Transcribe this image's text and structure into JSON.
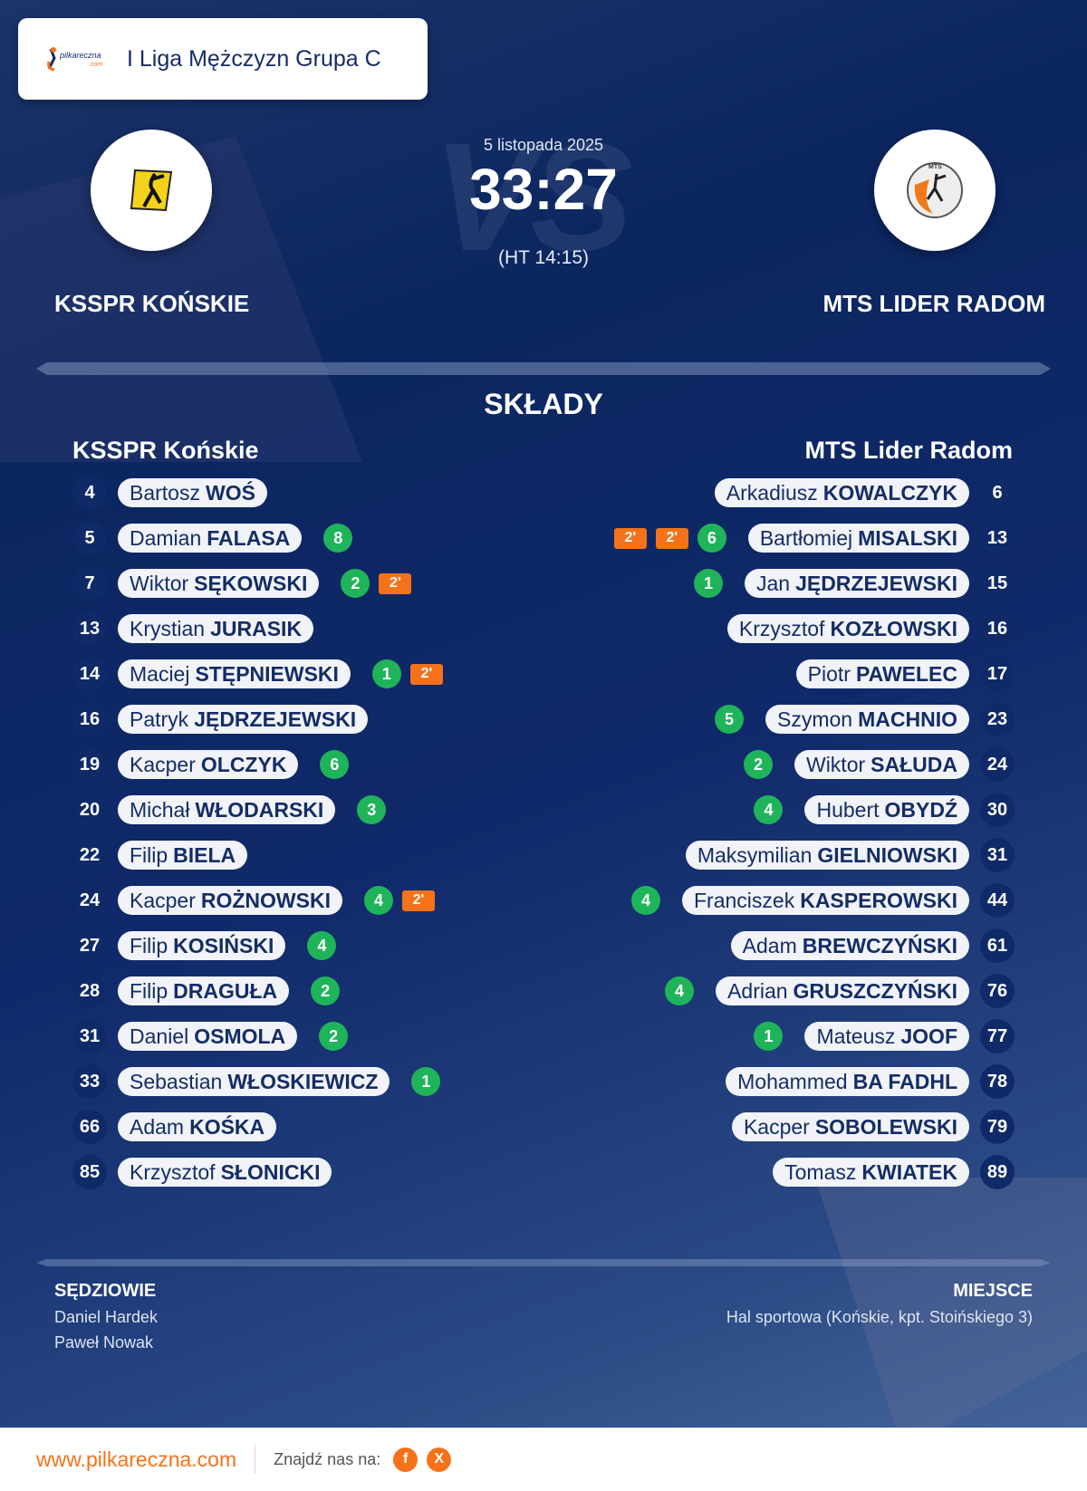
{
  "league": {
    "title": "I Liga Mężczyzn Grupa C",
    "logo_text": "pilkareczna .com"
  },
  "match": {
    "date": "5 listopada 2025",
    "score": "33:27",
    "halftime": "(HT 14:15)",
    "vs": "VS"
  },
  "home": {
    "name": "KSSPR KOŃSKIE",
    "squad_title": "KSSPR Końskie",
    "players": [
      {
        "num": "4",
        "first": "Bartosz",
        "last": "WOŚ",
        "goals": null,
        "pens": []
      },
      {
        "num": "5",
        "first": "Damian",
        "last": "FALASA",
        "goals": "8",
        "pens": []
      },
      {
        "num": "7",
        "first": "Wiktor",
        "last": "SĘKOWSKI",
        "goals": "2",
        "pens": [
          "2'"
        ]
      },
      {
        "num": "13",
        "first": "Krystian",
        "last": "JURASIK",
        "goals": null,
        "pens": []
      },
      {
        "num": "14",
        "first": "Maciej",
        "last": "STĘPNIEWSKI",
        "goals": "1",
        "pens": [
          "2'"
        ]
      },
      {
        "num": "16",
        "first": "Patryk",
        "last": "JĘDRZEJEWSKI",
        "goals": null,
        "pens": []
      },
      {
        "num": "19",
        "first": "Kacper",
        "last": "OLCZYK",
        "goals": "6",
        "pens": []
      },
      {
        "num": "20",
        "first": "Michał",
        "last": "WŁODARSKI",
        "goals": "3",
        "pens": []
      },
      {
        "num": "22",
        "first": "Filip",
        "last": "BIELA",
        "goals": null,
        "pens": []
      },
      {
        "num": "24",
        "first": "Kacper",
        "last": "ROŻNOWSKI",
        "goals": "4",
        "pens": [
          "2'"
        ]
      },
      {
        "num": "27",
        "first": "Filip",
        "last": "KOSIŃSKI",
        "goals": "4",
        "pens": []
      },
      {
        "num": "28",
        "first": "Filip",
        "last": "DRAGUŁA",
        "goals": "2",
        "pens": []
      },
      {
        "num": "31",
        "first": "Daniel",
        "last": "OSMOLA",
        "goals": "2",
        "pens": []
      },
      {
        "num": "33",
        "first": "Sebastian",
        "last": "WŁOSKIEWICZ",
        "goals": "1",
        "pens": []
      },
      {
        "num": "66",
        "first": "Adam",
        "last": "KOŚKA",
        "goals": null,
        "pens": []
      },
      {
        "num": "85",
        "first": "Krzysztof",
        "last": "SŁONICKI",
        "goals": null,
        "pens": []
      }
    ]
  },
  "away": {
    "name": "MTS LIDER RADOM",
    "squad_title": "MTS Lider Radom",
    "players": [
      {
        "num": "6",
        "first": "Arkadiusz",
        "last": "KOWALCZYK",
        "goals": null,
        "pens": []
      },
      {
        "num": "13",
        "first": "Bartłomiej",
        "last": "MISALSKI",
        "goals": "6",
        "pens": [
          "2'",
          "2'"
        ]
      },
      {
        "num": "15",
        "first": "Jan",
        "last": "JĘDRZEJEWSKI",
        "goals": "1",
        "pens": []
      },
      {
        "num": "16",
        "first": "Krzysztof",
        "last": "KOZŁOWSKI",
        "goals": null,
        "pens": []
      },
      {
        "num": "17",
        "first": "Piotr",
        "last": "PAWELEC",
        "goals": null,
        "pens": []
      },
      {
        "num": "23",
        "first": "Szymon",
        "last": "MACHNIO",
        "goals": "5",
        "pens": []
      },
      {
        "num": "24",
        "first": "Wiktor",
        "last": "SAŁUDA",
        "goals": "2",
        "pens": []
      },
      {
        "num": "30",
        "first": "Hubert",
        "last": "OBYDŹ",
        "goals": "4",
        "pens": []
      },
      {
        "num": "31",
        "first": "Maksymilian",
        "last": "GIELNIOWSKI",
        "goals": null,
        "pens": []
      },
      {
        "num": "44",
        "first": "Franciszek",
        "last": "KASPEROWSKI",
        "goals": "4",
        "pens": []
      },
      {
        "num": "61",
        "first": "Adam",
        "last": "BREWCZYŃSKI",
        "goals": null,
        "pens": []
      },
      {
        "num": "76",
        "first": "Adrian",
        "last": "GRUSZCZYŃSKI",
        "goals": "4",
        "pens": []
      },
      {
        "num": "77",
        "first": "Mateusz",
        "last": "JOOF",
        "goals": "1",
        "pens": []
      },
      {
        "num": "78",
        "first": "Mohammed",
        "last": "BA FADHL",
        "goals": null,
        "pens": []
      },
      {
        "num": "79",
        "first": "Kacper",
        "last": "SOBOLEWSKI",
        "goals": null,
        "pens": []
      },
      {
        "num": "89",
        "first": "Tomasz",
        "last": "KWIATEK",
        "goals": null,
        "pens": []
      }
    ]
  },
  "squads_title": "SKŁADY",
  "referees": {
    "label": "SĘDZIOWIE",
    "names": [
      "Daniel Hardek",
      "Paweł Nowak"
    ]
  },
  "venue": {
    "label": "MIEJSCE",
    "value": "Hal sportowa (Końskie, kpt. Stoińskiego 3)"
  },
  "footer": {
    "url": "www.pilkareczna.com",
    "find_us": "Znajdź nas na:",
    "social": [
      {
        "icon": "facebook-icon",
        "glyph": "f"
      },
      {
        "icon": "x-icon",
        "glyph": "X"
      }
    ]
  },
  "colors": {
    "navy": "#0c2660",
    "goal": "#1fb45a",
    "penalty": "#f5721a"
  }
}
